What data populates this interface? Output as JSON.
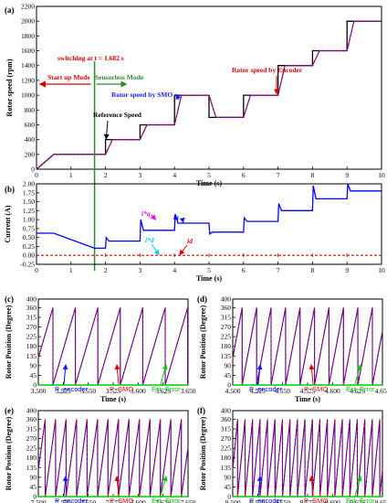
{
  "figure": {
    "panels": [
      {
        "id": "a",
        "label": "(a)"
      },
      {
        "id": "b",
        "label": "(b)"
      },
      {
        "id": "c",
        "label": "(c)"
      },
      {
        "id": "d",
        "label": "(d)"
      },
      {
        "id": "e",
        "label": "(e)"
      },
      {
        "id": "f",
        "label": "(f)"
      }
    ],
    "annotations": {
      "switching": "switching at t = 1.682 s",
      "startup": "Start up Mode",
      "sensorless": "Sensorless Mode",
      "encoder": "Rotor speed by Encoder",
      "smo": "Rotor speed by SMO",
      "reference": "Reference Speed",
      "iq_star": "i*q",
      "iq": "iq",
      "id_star": "i*d",
      "id": "id"
    },
    "colors": {
      "reference": "#000000",
      "encoder": "#e00000",
      "smo": "#1a1aff",
      "iq": "#0000ff",
      "id": "#e00000",
      "p_encoder": "#0000ff",
      "p_smo": "#e00000",
      "est_error": "#00cc00",
      "startup_arrow": "#e00000",
      "sensorless_arrow": "#2e8b2e",
      "switch_line": "#2e8b2e"
    }
  },
  "chart_data": [
    {
      "panel": "a",
      "type": "line",
      "xlabel": "Time (s)",
      "ylabel": "Rotor speed (rpm)",
      "xlim": [
        0,
        10
      ],
      "ylim": [
        0,
        2200
      ],
      "xticks": [
        "0",
        "1",
        "2",
        "3",
        "4",
        "5",
        "6",
        "7",
        "8",
        "9",
        "10"
      ],
      "yticks": [
        "0",
        "200",
        "400",
        "600",
        "800",
        "1000",
        "1200",
        "1400",
        "1600",
        "1800",
        "2000",
        "2200"
      ],
      "series": [
        {
          "name": "Reference Speed",
          "x": [
            0,
            0.5,
            2,
            2,
            3,
            3,
            4,
            4,
            5,
            5,
            6,
            6,
            7,
            7,
            8,
            8,
            9,
            9,
            10
          ],
          "y": [
            0,
            200,
            200,
            400,
            400,
            600,
            600,
            1000,
            1000,
            700,
            700,
            1000,
            1000,
            1400,
            1400,
            1600,
            1600,
            2000,
            2000
          ]
        },
        {
          "name": "Rotor speed by Encoder",
          "x": [
            0,
            0.5,
            2,
            2.2,
            3,
            3.2,
            4,
            4.2,
            5,
            5.2,
            6,
            6.2,
            7,
            7.2,
            8,
            8.2,
            9,
            9.2,
            10
          ],
          "y": [
            0,
            200,
            200,
            400,
            400,
            600,
            600,
            1000,
            1000,
            700,
            700,
            1000,
            1000,
            1400,
            1400,
            1600,
            1600,
            2000,
            2000
          ]
        },
        {
          "name": "Rotor speed by SMO",
          "x": [
            0,
            0.5,
            2,
            2.2,
            3,
            3.2,
            4,
            4.2,
            5,
            5.2,
            6,
            6.2,
            7,
            7.2,
            8,
            8.2,
            9,
            9.2,
            10
          ],
          "y": [
            0,
            200,
            200,
            400,
            400,
            600,
            600,
            1000,
            1000,
            700,
            700,
            1000,
            1000,
            1400,
            1400,
            1600,
            1600,
            2000,
            2000
          ]
        }
      ]
    },
    {
      "panel": "b",
      "type": "line",
      "xlabel": "Time (s)",
      "ylabel": "Current (A)",
      "xlim": [
        0,
        10
      ],
      "ylim": [
        -0.25,
        2.0
      ],
      "xticks": [
        "0",
        "1",
        "2",
        "3",
        "4",
        "5",
        "6",
        "7",
        "8",
        "9",
        "10"
      ],
      "yticks": [
        "-0.25",
        "0.00",
        "0.25",
        "0.50",
        "0.75",
        "1.00",
        "1.25",
        "1.50",
        "1.75",
        "2.00"
      ],
      "series": [
        {
          "name": "iq",
          "x": [
            0,
            0.5,
            1.68,
            1.68,
            2,
            2.02,
            2.1,
            3,
            3.02,
            3.1,
            4,
            4.02,
            4.1,
            5,
            5.02,
            5.1,
            6,
            6.02,
            6.1,
            7,
            7.02,
            7.1,
            8,
            8.02,
            8.1,
            9,
            9.02,
            9.1,
            10
          ],
          "y": [
            0.62,
            0.62,
            0.2,
            0.2,
            0.2,
            0.5,
            0.4,
            0.4,
            1.0,
            0.7,
            0.7,
            1.15,
            0.9,
            0.9,
            0.6,
            0.65,
            0.65,
            1.05,
            0.95,
            0.95,
            1.45,
            1.25,
            1.25,
            1.95,
            1.58,
            1.58,
            2.0,
            1.8,
            1.8
          ]
        },
        {
          "name": "id",
          "x": [
            0,
            10
          ],
          "y": [
            0,
            0
          ]
        }
      ]
    },
    {
      "panel": "c",
      "type": "line",
      "xlabel": "Time (s)",
      "ylabel": "Rotor Position (Degree)",
      "xlim": [
        3.5,
        3.65
      ],
      "ylim": [
        0,
        400
      ],
      "period": 0.0225,
      "xticks": [
        "3.500",
        "3.525",
        "3.550",
        "3.575",
        "3.600",
        "3.625",
        "3.650"
      ],
      "yticks": [
        "0",
        "45",
        "90",
        "135",
        "180",
        "225",
        "270",
        "315",
        "360",
        "400"
      ],
      "series": [
        {
          "name": "P_encoder"
        },
        {
          "name": "P_SMO"
        },
        {
          "name": "Est_Error"
        }
      ]
    },
    {
      "panel": "d",
      "type": "line",
      "xlabel": "Time (s)",
      "ylabel": "Rotor Position (Degree)",
      "xlim": [
        4.5,
        4.65
      ],
      "ylim": [
        0,
        400
      ],
      "period": 0.0145,
      "xticks": [
        "4.500",
        "4.525",
        "4.550",
        "4.575",
        "4.600",
        "4.625",
        "4.650"
      ],
      "yticks": [
        "0",
        "45",
        "90",
        "135",
        "180",
        "225",
        "270",
        "315",
        "360",
        "400"
      ],
      "series": [
        {
          "name": "P_encoder"
        },
        {
          "name": "P_SMO"
        },
        {
          "name": "Est_Error"
        }
      ]
    },
    {
      "panel": "e",
      "type": "line",
      "xlabel": "Time (s)",
      "ylabel": "Rotor Position (Degree)",
      "xlim": [
        7.5,
        7.65
      ],
      "ylim": [
        0,
        400
      ],
      "period": 0.0105,
      "xticks": [
        "7.500",
        "7.525",
        "7.550",
        "7.575",
        "7.600",
        "7.625",
        "7.650"
      ],
      "yticks": [
        "0",
        "45",
        "90",
        "135",
        "180",
        "225",
        "270",
        "315",
        "360",
        "400"
      ],
      "series": [
        {
          "name": "P_encoder"
        },
        {
          "name": "P_SMO"
        },
        {
          "name": "Est_Error"
        }
      ]
    },
    {
      "panel": "f",
      "type": "line",
      "xlabel": "Time (s)",
      "ylabel": "Rotor Position (Degree)",
      "xlim": [
        9.5,
        9.65
      ],
      "ylim": [
        0,
        400
      ],
      "period": 0.0075,
      "xticks": [
        "9.500",
        "9.525",
        "9.550",
        "9.575",
        "9.600",
        "9.625",
        "9.650"
      ],
      "yticks": [
        "0",
        "45",
        "90",
        "135",
        "180",
        "225",
        "270",
        "315",
        "360",
        "400"
      ],
      "series": [
        {
          "name": "P_encoder"
        },
        {
          "name": "P_SMO"
        },
        {
          "name": "Est_Error"
        }
      ]
    }
  ]
}
